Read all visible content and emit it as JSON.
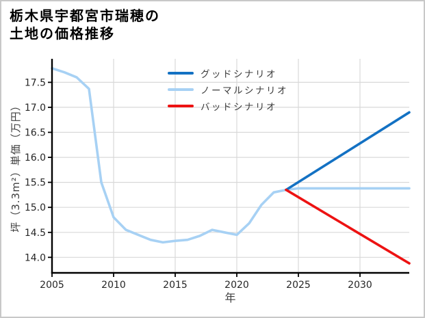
{
  "chart_data": {
    "type": "line",
    "title_lines": [
      "栃木県宇都宮市瑞穂の",
      "土地の価格推移"
    ],
    "xlabel": "年",
    "ylabel": "坪（3.3m²）単価（万円）",
    "xlim": [
      2005,
      2034
    ],
    "ylim": [
      13.69,
      17.97
    ],
    "xticks": [
      2005,
      2010,
      2015,
      2020,
      2025,
      2030
    ],
    "yticks": [
      14.0,
      14.5,
      15.0,
      15.5,
      16.0,
      16.5,
      17.0,
      17.5
    ],
    "grid": true,
    "legend_position": "upper-center-left-inside",
    "colors": {
      "grid": "#d8d8d8",
      "spine": "#000000",
      "tick_label": "#262626",
      "axis_label": "#3d3d3d"
    },
    "series": [
      {
        "name": "グッドシナリオ",
        "color": "#1371c3",
        "x": [
          2024,
          2034
        ],
        "y": [
          15.35,
          16.9
        ]
      },
      {
        "name": "ノーマルシナリオ",
        "color": "#a7d1f4",
        "x": [
          2005,
          2006,
          2007,
          2008,
          2009,
          2010,
          2011,
          2012,
          2013,
          2014,
          2015,
          2016,
          2017,
          2018,
          2019,
          2020,
          2021,
          2022,
          2023,
          2024,
          2025,
          2034
        ],
        "y": [
          17.78,
          17.7,
          17.6,
          17.37,
          15.5,
          14.8,
          14.55,
          14.45,
          14.35,
          14.3,
          14.33,
          14.35,
          14.43,
          14.55,
          14.5,
          14.45,
          14.68,
          15.05,
          15.3,
          15.35,
          15.38,
          15.38
        ]
      },
      {
        "name": "バッドシナリオ",
        "color": "#ed1212",
        "x": [
          2024,
          2034
        ],
        "y": [
          15.35,
          13.88
        ]
      }
    ]
  }
}
